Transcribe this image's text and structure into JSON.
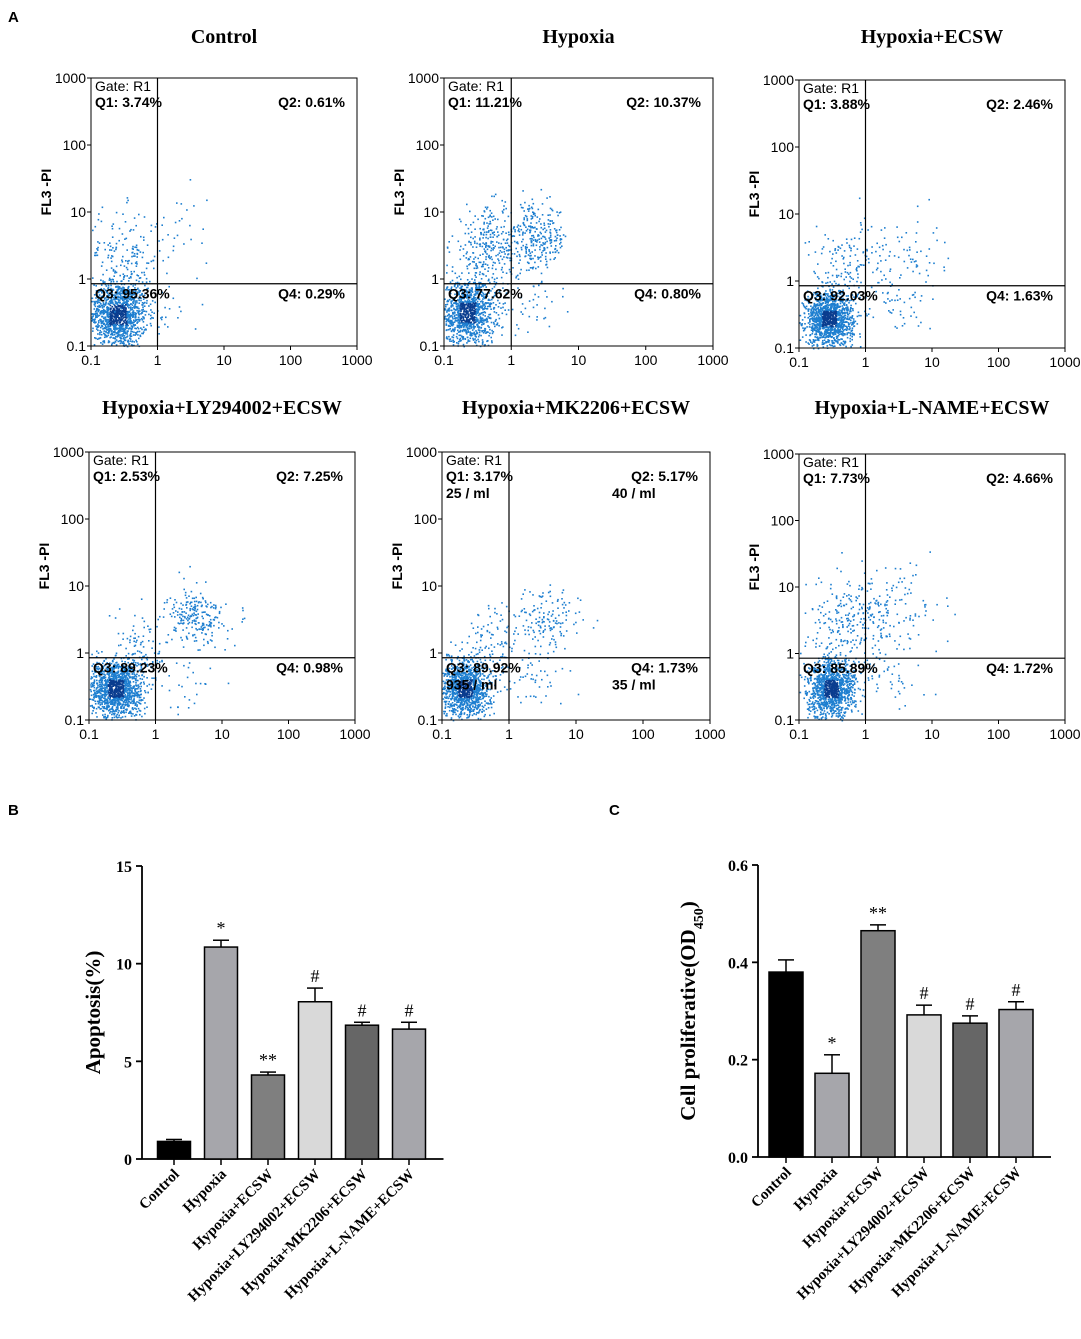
{
  "panel_labels": {
    "a": "A",
    "b": "B",
    "c": "C"
  },
  "colors": {
    "dots": "#1e7fd0",
    "dots_dense": "#0a3d8f",
    "black": "#000000"
  },
  "chart_data": [
    {
      "type": "scatter",
      "title": "Control",
      "ylabel": "FL3 -PI",
      "x_ticks": [
        "0.1",
        "1",
        "10",
        "100",
        "1000"
      ],
      "y_ticks": [
        "0.1",
        "1",
        "10",
        "100",
        "1000"
      ],
      "xlim": [
        0.1,
        1000
      ],
      "ylim": [
        0.1,
        1000
      ],
      "scale": "log",
      "gate_x": 1,
      "gate_y": 0.85,
      "gate_label": "Gate: R1",
      "q1": "Q1: 3.74%",
      "q2": "Q2: 0.61%",
      "q3": "Q3: 95.36%",
      "q4": "Q4: 0.29%",
      "counts": {
        "q1": "",
        "q2": "",
        "q3": "",
        "q4": ""
      },
      "populations": [
        {
          "cx": 0.25,
          "cy": 0.3,
          "sx": 0.22,
          "sy": 0.25,
          "n": 1300
        },
        {
          "cx": 0.3,
          "cy": 2.2,
          "sx": 0.3,
          "sy": 0.35,
          "n": 170
        },
        {
          "cx": 2.0,
          "cy": 5.0,
          "sx": 0.3,
          "sy": 0.3,
          "n": 25
        },
        {
          "cx": 1.6,
          "cy": 0.35,
          "sx": 0.2,
          "sy": 0.25,
          "n": 15
        }
      ]
    },
    {
      "type": "scatter",
      "title": "Hypoxia",
      "ylabel": "FL3 -PI",
      "x_ticks": [
        "0.1",
        "1",
        "10",
        "100",
        "1000"
      ],
      "y_ticks": [
        "0.1",
        "1",
        "10",
        "100",
        "1000"
      ],
      "xlim": [
        0.1,
        1000
      ],
      "ylim": [
        0.1,
        1000
      ],
      "scale": "log",
      "gate_x": 1,
      "gate_y": 0.85,
      "gate_label": "Gate: R1",
      "q1": "Q1: 11.21%",
      "q2": "Q2: 10.37%",
      "q3": "Q3: 77.62%",
      "q4": "Q4: 0.80%",
      "counts": {
        "q1": "",
        "q2": "",
        "q3": "",
        "q4": ""
      },
      "populations": [
        {
          "cx": 0.22,
          "cy": 0.32,
          "sx": 0.2,
          "sy": 0.25,
          "n": 1100
        },
        {
          "cx": 0.45,
          "cy": 3.0,
          "sx": 0.28,
          "sy": 0.3,
          "n": 280
        },
        {
          "cx": 2.2,
          "cy": 4.0,
          "sx": 0.25,
          "sy": 0.25,
          "n": 290
        },
        {
          "cx": 1.8,
          "cy": 0.45,
          "sx": 0.22,
          "sy": 0.25,
          "n": 40
        }
      ]
    },
    {
      "type": "scatter",
      "title": "Hypoxia+ECSW",
      "ylabel": "FL3 -PI",
      "x_ticks": [
        "0.1",
        "1",
        "10",
        "100",
        "1000"
      ],
      "y_ticks": [
        "0.1",
        "1",
        "10",
        "100",
        "1000"
      ],
      "xlim": [
        0.1,
        1000
      ],
      "ylim": [
        0.1,
        1000
      ],
      "scale": "log",
      "gate_x": 1,
      "gate_y": 0.85,
      "gate_label": "Gate: R1",
      "q1": "Q1: 3.88%",
      "q2": "Q2: 2.46%",
      "q3": "Q3: 92.03%",
      "q4": "Q4: 1.63%",
      "counts": {
        "q1": "",
        "q2": "",
        "q3": "",
        "q4": ""
      },
      "populations": [
        {
          "cx": 0.28,
          "cy": 0.28,
          "sx": 0.18,
          "sy": 0.2,
          "n": 1300
        },
        {
          "cx": 0.5,
          "cy": 1.8,
          "sx": 0.28,
          "sy": 0.3,
          "n": 130
        },
        {
          "cx": 3.5,
          "cy": 2.5,
          "sx": 0.3,
          "sy": 0.3,
          "n": 70
        },
        {
          "cx": 2.5,
          "cy": 0.45,
          "sx": 0.3,
          "sy": 0.2,
          "n": 50
        }
      ]
    },
    {
      "type": "scatter",
      "title": "Hypoxia+LY294002+ECSW",
      "ylabel": "FL3 -PI",
      "x_ticks": [
        "0.1",
        "1",
        "10",
        "100",
        "1000"
      ],
      "y_ticks": [
        "0.1",
        "1",
        "10",
        "100",
        "1000"
      ],
      "xlim": [
        0.1,
        1000
      ],
      "ylim": [
        0.1,
        1000
      ],
      "scale": "log",
      "gate_x": 1,
      "gate_y": 0.85,
      "gate_label": "Gate: R1",
      "q1": "Q1: 2.53%",
      "q2": "Q2: 7.25%",
      "q3": "Q3: 89.23%",
      "q4": "Q4: 0.98%",
      "counts": {
        "q1": "",
        "q2": "",
        "q3": "",
        "q4": ""
      },
      "populations": [
        {
          "cx": 0.25,
          "cy": 0.3,
          "sx": 0.2,
          "sy": 0.22,
          "n": 1300
        },
        {
          "cx": 0.6,
          "cy": 1.3,
          "sx": 0.2,
          "sy": 0.25,
          "n": 80
        },
        {
          "cx": 4.0,
          "cy": 3.5,
          "sx": 0.22,
          "sy": 0.2,
          "n": 230
        },
        {
          "cx": 2.0,
          "cy": 0.4,
          "sx": 0.3,
          "sy": 0.25,
          "n": 40
        }
      ]
    },
    {
      "type": "scatter",
      "title": "Hypoxia+MK2206+ECSW",
      "ylabel": "FL3 -PI",
      "x_ticks": [
        "0.1",
        "1",
        "10",
        "100",
        "1000"
      ],
      "y_ticks": [
        "0.1",
        "1",
        "10",
        "100",
        "1000"
      ],
      "xlim": [
        0.1,
        1000
      ],
      "ylim": [
        0.1,
        1000
      ],
      "scale": "log",
      "gate_x": 1,
      "gate_y": 0.85,
      "gate_label": "Gate: R1",
      "q1": "Q1: 3.17%",
      "q2": "Q2: 5.17%",
      "q3": "Q3: 89.92%",
      "q4": "Q4: 1.73%",
      "counts": {
        "q1": "25 / ml",
        "q2": "40 / ml",
        "q3": "935 / ml",
        "q4": "35 / ml"
      },
      "populations": [
        {
          "cx": 0.22,
          "cy": 0.3,
          "sx": 0.18,
          "sy": 0.22,
          "n": 1150
        },
        {
          "cx": 0.6,
          "cy": 1.5,
          "sx": 0.22,
          "sy": 0.28,
          "n": 90
        },
        {
          "cx": 3.5,
          "cy": 3.0,
          "sx": 0.25,
          "sy": 0.25,
          "n": 150
        },
        {
          "cx": 2.2,
          "cy": 0.4,
          "sx": 0.3,
          "sy": 0.25,
          "n": 50
        }
      ]
    },
    {
      "type": "scatter",
      "title": "Hypoxia+L-NAME+ECSW",
      "ylabel": "FL3 -PI",
      "x_ticks": [
        "0.1",
        "1",
        "10",
        "100",
        "1000"
      ],
      "y_ticks": [
        "0.1",
        "1",
        "10",
        "100",
        "1000"
      ],
      "xlim": [
        0.1,
        1000
      ],
      "ylim": [
        0.1,
        1000
      ],
      "scale": "log",
      "gate_x": 1,
      "gate_y": 0.85,
      "gate_label": "Gate: R1",
      "q1": "Q1: 7.73%",
      "q2": "Q2: 4.66%",
      "q3": "Q3: 85.89%",
      "q4": "Q4: 1.72%",
      "counts": {
        "q1": "",
        "q2": "",
        "q3": "",
        "q4": ""
      },
      "populations": [
        {
          "cx": 0.3,
          "cy": 0.3,
          "sx": 0.18,
          "sy": 0.22,
          "n": 1150
        },
        {
          "cx": 0.55,
          "cy": 3.0,
          "sx": 0.3,
          "sy": 0.35,
          "n": 230
        },
        {
          "cx": 3.0,
          "cy": 5.0,
          "sx": 0.35,
          "sy": 0.35,
          "n": 110
        },
        {
          "cx": 2.0,
          "cy": 0.45,
          "sx": 0.3,
          "sy": 0.25,
          "n": 50
        }
      ]
    },
    {
      "type": "bar",
      "panel": "B",
      "title": "",
      "xlabel": "",
      "ylabel": "Apoptosis(%)",
      "ylim": [
        0,
        15
      ],
      "y_ticks": [
        "0",
        "5",
        "10",
        "15"
      ],
      "categories": [
        "Control",
        "Hypoxia",
        "Hypoxia+ECSW",
        "Hypoxia+LY294002+ECSW",
        "Hypoxia+MK2206+ECSW",
        "Hypoxia+L-NAME+ECSW"
      ],
      "values": [
        0.9,
        10.85,
        4.3,
        8.05,
        6.85,
        6.65
      ],
      "errors": [
        0.1,
        0.35,
        0.15,
        0.7,
        0.15,
        0.35
      ],
      "significance": [
        "",
        "*",
        "**",
        "#",
        "#",
        "#"
      ],
      "bar_colors": [
        "#000000",
        "#a6a6ab",
        "#7f7f7f",
        "#d9d9d9",
        "#666666",
        "#a6a6ab"
      ]
    },
    {
      "type": "bar",
      "panel": "C",
      "title": "",
      "xlabel": "",
      "ylabel": "Cell proliferative(OD",
      "ylabel_sub": "450",
      "ylabel_close": ")",
      "ylim": [
        0,
        0.6
      ],
      "y_ticks": [
        "0.0",
        "0.2",
        "0.4",
        "0.6"
      ],
      "categories": [
        "Control",
        "Hypoxia",
        "Hypoxia+ECSW",
        "Hypoxia+LY294002+ECSW",
        "Hypoxia+MK2206+ECSW",
        "Hypoxia+L-NAME+ECSW"
      ],
      "values": [
        0.38,
        0.172,
        0.465,
        0.292,
        0.275,
        0.303
      ],
      "errors": [
        0.025,
        0.038,
        0.012,
        0.02,
        0.015,
        0.016
      ],
      "significance": [
        "",
        "*",
        "**",
        "#",
        "#",
        "#"
      ],
      "bar_colors": [
        "#000000",
        "#a6a6ab",
        "#7f7f7f",
        "#d9d9d9",
        "#666666",
        "#a6a6ab"
      ]
    }
  ]
}
